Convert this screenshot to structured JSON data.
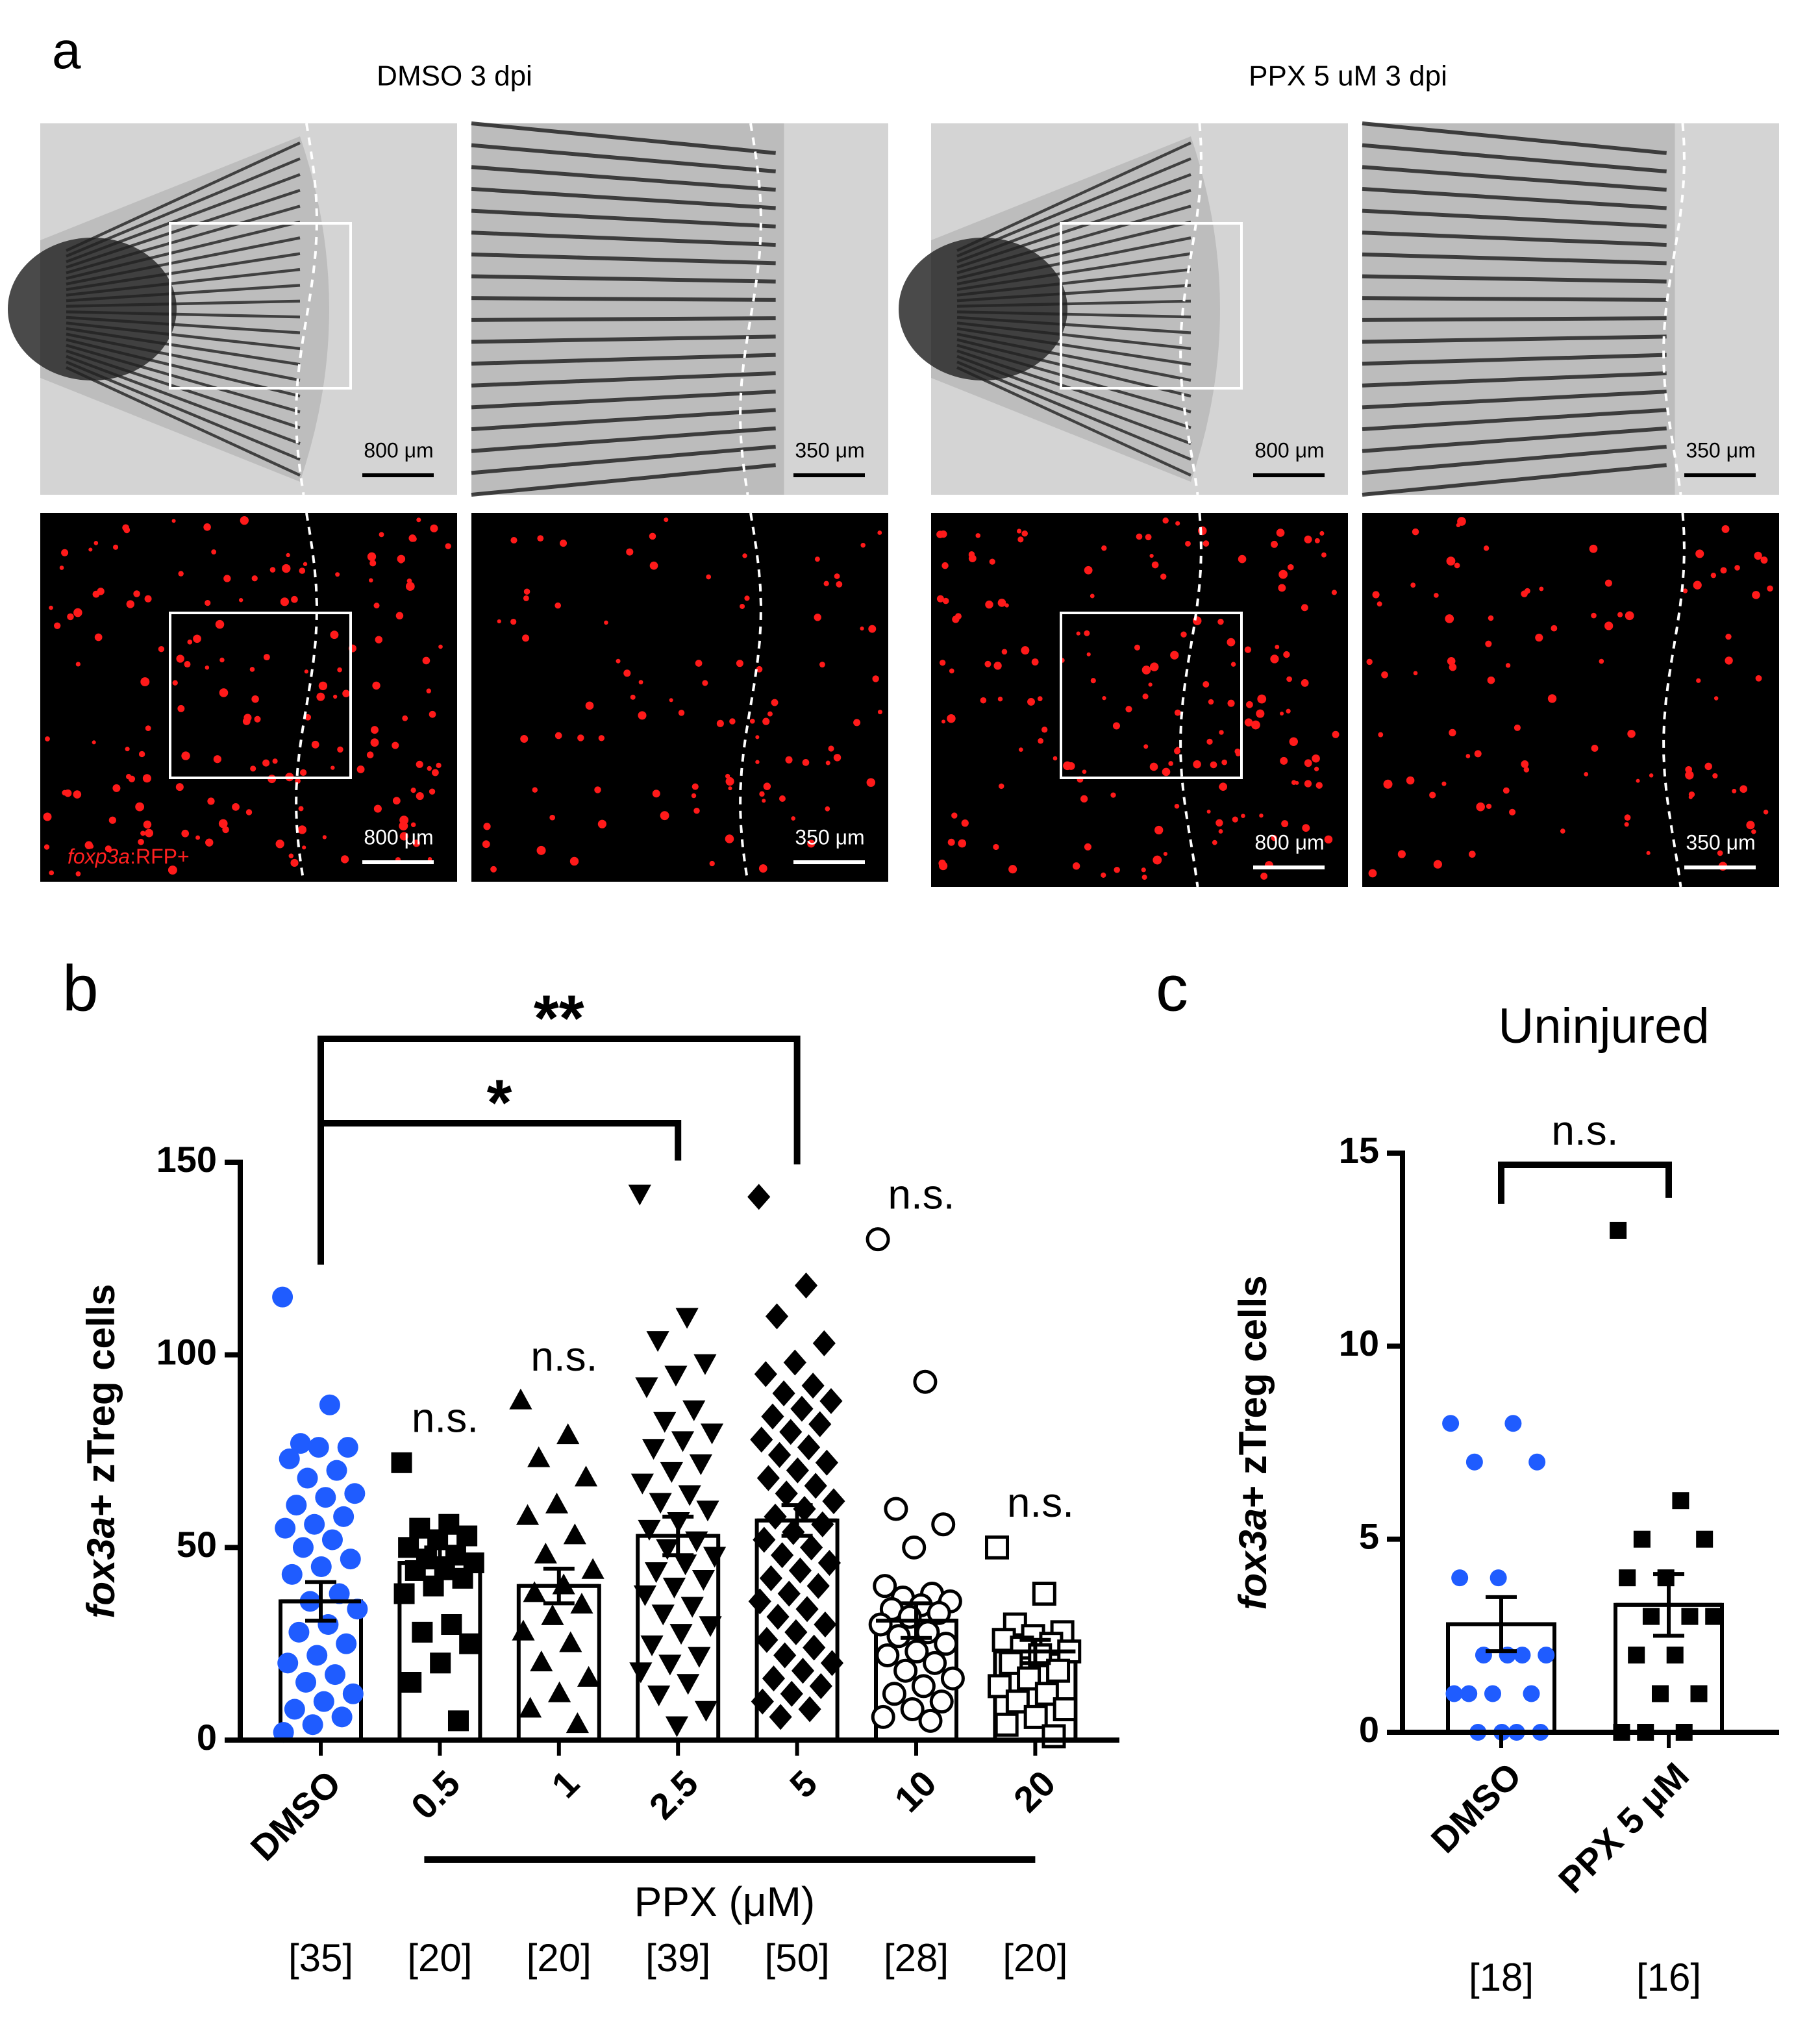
{
  "panel_a": {
    "label": "a",
    "conditions": [
      {
        "title": "DMSO 3 dpi",
        "scale_bars": [
          "800 μm",
          "350 μm",
          "800 μm",
          "350 μm"
        ]
      },
      {
        "title": "PPX 5 uM 3 dpi",
        "scale_bars": [
          "800 μm",
          "350 μm",
          "800 μm",
          "350 μm"
        ]
      }
    ],
    "reporter_italic": "foxp3a",
    "reporter_rest": ":RFP+"
  },
  "chart_data": [
    {
      "type": "bar",
      "panel": "b",
      "ylabel_italic": "fox3a",
      "ylabel": "+ zTreg cells",
      "categories": [
        "DMSO",
        "0.5",
        "1",
        "2.5",
        "5",
        "10",
        "20"
      ],
      "values": [
        36,
        46,
        40,
        53,
        57,
        31,
        23
      ],
      "errors": [
        5,
        4,
        4.5,
        5,
        4,
        4.5,
        3
      ],
      "points": [
        [
          115,
          87,
          77,
          76,
          76,
          73,
          70,
          68,
          64,
          63,
          61,
          58,
          56,
          55,
          52,
          50,
          47,
          45,
          43,
          38,
          36,
          34,
          30,
          28,
          25,
          22,
          20,
          17,
          15,
          12,
          10,
          8,
          6,
          4,
          2
        ],
        [
          72,
          56,
          55,
          53,
          52,
          50,
          48,
          47,
          46,
          45,
          44,
          42,
          40,
          38,
          30,
          28,
          25,
          20,
          15,
          5
        ],
        [
          88,
          79,
          73,
          68,
          61,
          58,
          53,
          48,
          44,
          40,
          38,
          35,
          32,
          28,
          25,
          20,
          16,
          12,
          8,
          4
        ],
        [
          142,
          110,
          104,
          98,
          95,
          92,
          86,
          83,
          80,
          78,
          76,
          72,
          70,
          67,
          64,
          62,
          60,
          57,
          55,
          52,
          50,
          48,
          46,
          44,
          42,
          40,
          38,
          35,
          33,
          30,
          28,
          25,
          22,
          20,
          18,
          15,
          12,
          8,
          4
        ],
        [
          141,
          118,
          110,
          103,
          98,
          95,
          92,
          90,
          88,
          86,
          84,
          82,
          80,
          78,
          76,
          74,
          72,
          70,
          68,
          66,
          64,
          62,
          60,
          58,
          56,
          54,
          52,
          50,
          48,
          46,
          44,
          42,
          40,
          38,
          36,
          34,
          32,
          30,
          28,
          26,
          24,
          22,
          20,
          18,
          16,
          14,
          12,
          10,
          8,
          6
        ],
        [
          130,
          93,
          60,
          56,
          50,
          40,
          38,
          37,
          36,
          35,
          34,
          33,
          32,
          30,
          28,
          27,
          25,
          23,
          22,
          20,
          18,
          16,
          14,
          12,
          10,
          8,
          6,
          5
        ],
        [
          50,
          38,
          30,
          28,
          27,
          26,
          25,
          24,
          23,
          22,
          20,
          18,
          16,
          14,
          12,
          10,
          8,
          6,
          4,
          1
        ]
      ],
      "point_styles": [
        {
          "color": "#1f5cff",
          "marker": "circle",
          "filled": true
        },
        {
          "color": "#000000",
          "marker": "square",
          "filled": true
        },
        {
          "color": "#000000",
          "marker": "triangle",
          "filled": true
        },
        {
          "color": "#000000",
          "marker": "triangle-down",
          "filled": true
        },
        {
          "color": "#000000",
          "marker": "diamond",
          "filled": true
        },
        {
          "color": "#000000",
          "marker": "circle",
          "filled": false
        },
        {
          "color": "#000000",
          "marker": "square",
          "filled": false
        }
      ],
      "ylim": [
        0,
        150
      ],
      "yticks": [
        0,
        50,
        100,
        150
      ],
      "annotations": [
        null,
        "n.s.",
        "n.s.",
        null,
        null,
        "n.s.",
        "n.s."
      ],
      "brackets": [
        {
          "between": [
            "DMSO",
            "5"
          ],
          "label": "**"
        },
        {
          "between": [
            "DMSO",
            "2.5"
          ],
          "label": "*"
        }
      ],
      "group_label": "PPX (μM)",
      "group_span": [
        "0.5",
        "20"
      ],
      "counts": [
        "[35]",
        "[20]",
        "[20]",
        "[39]",
        "[50]",
        "[28]",
        "[20]"
      ]
    },
    {
      "type": "bar",
      "panel": "c",
      "title": "Uninjured",
      "ylabel_italic": "fox3a",
      "ylabel": "+ zTreg cells",
      "categories": [
        "DMSO",
        "PPX 5 μM"
      ],
      "values": [
        2.8,
        3.3
      ],
      "errors": [
        0.7,
        0.8
      ],
      "points": [
        [
          8,
          8,
          7,
          7,
          4,
          4,
          2,
          2,
          2,
          2,
          1,
          1,
          1,
          1,
          0,
          0,
          0,
          0
        ],
        [
          13,
          6,
          5,
          5,
          4,
          4,
          3,
          3,
          3,
          2,
          2,
          1,
          1,
          0,
          0,
          0
        ]
      ],
      "point_styles": [
        {
          "color": "#1f5cff",
          "marker": "circle",
          "filled": true
        },
        {
          "color": "#000000",
          "marker": "square",
          "filled": true
        }
      ],
      "ylim": [
        0,
        15
      ],
      "yticks": [
        0,
        5,
        10,
        15
      ],
      "brackets": [
        {
          "between": [
            "DMSO",
            "PPX 5 μM"
          ],
          "label": "n.s."
        }
      ],
      "counts": [
        "[18]",
        "[16]"
      ]
    }
  ]
}
